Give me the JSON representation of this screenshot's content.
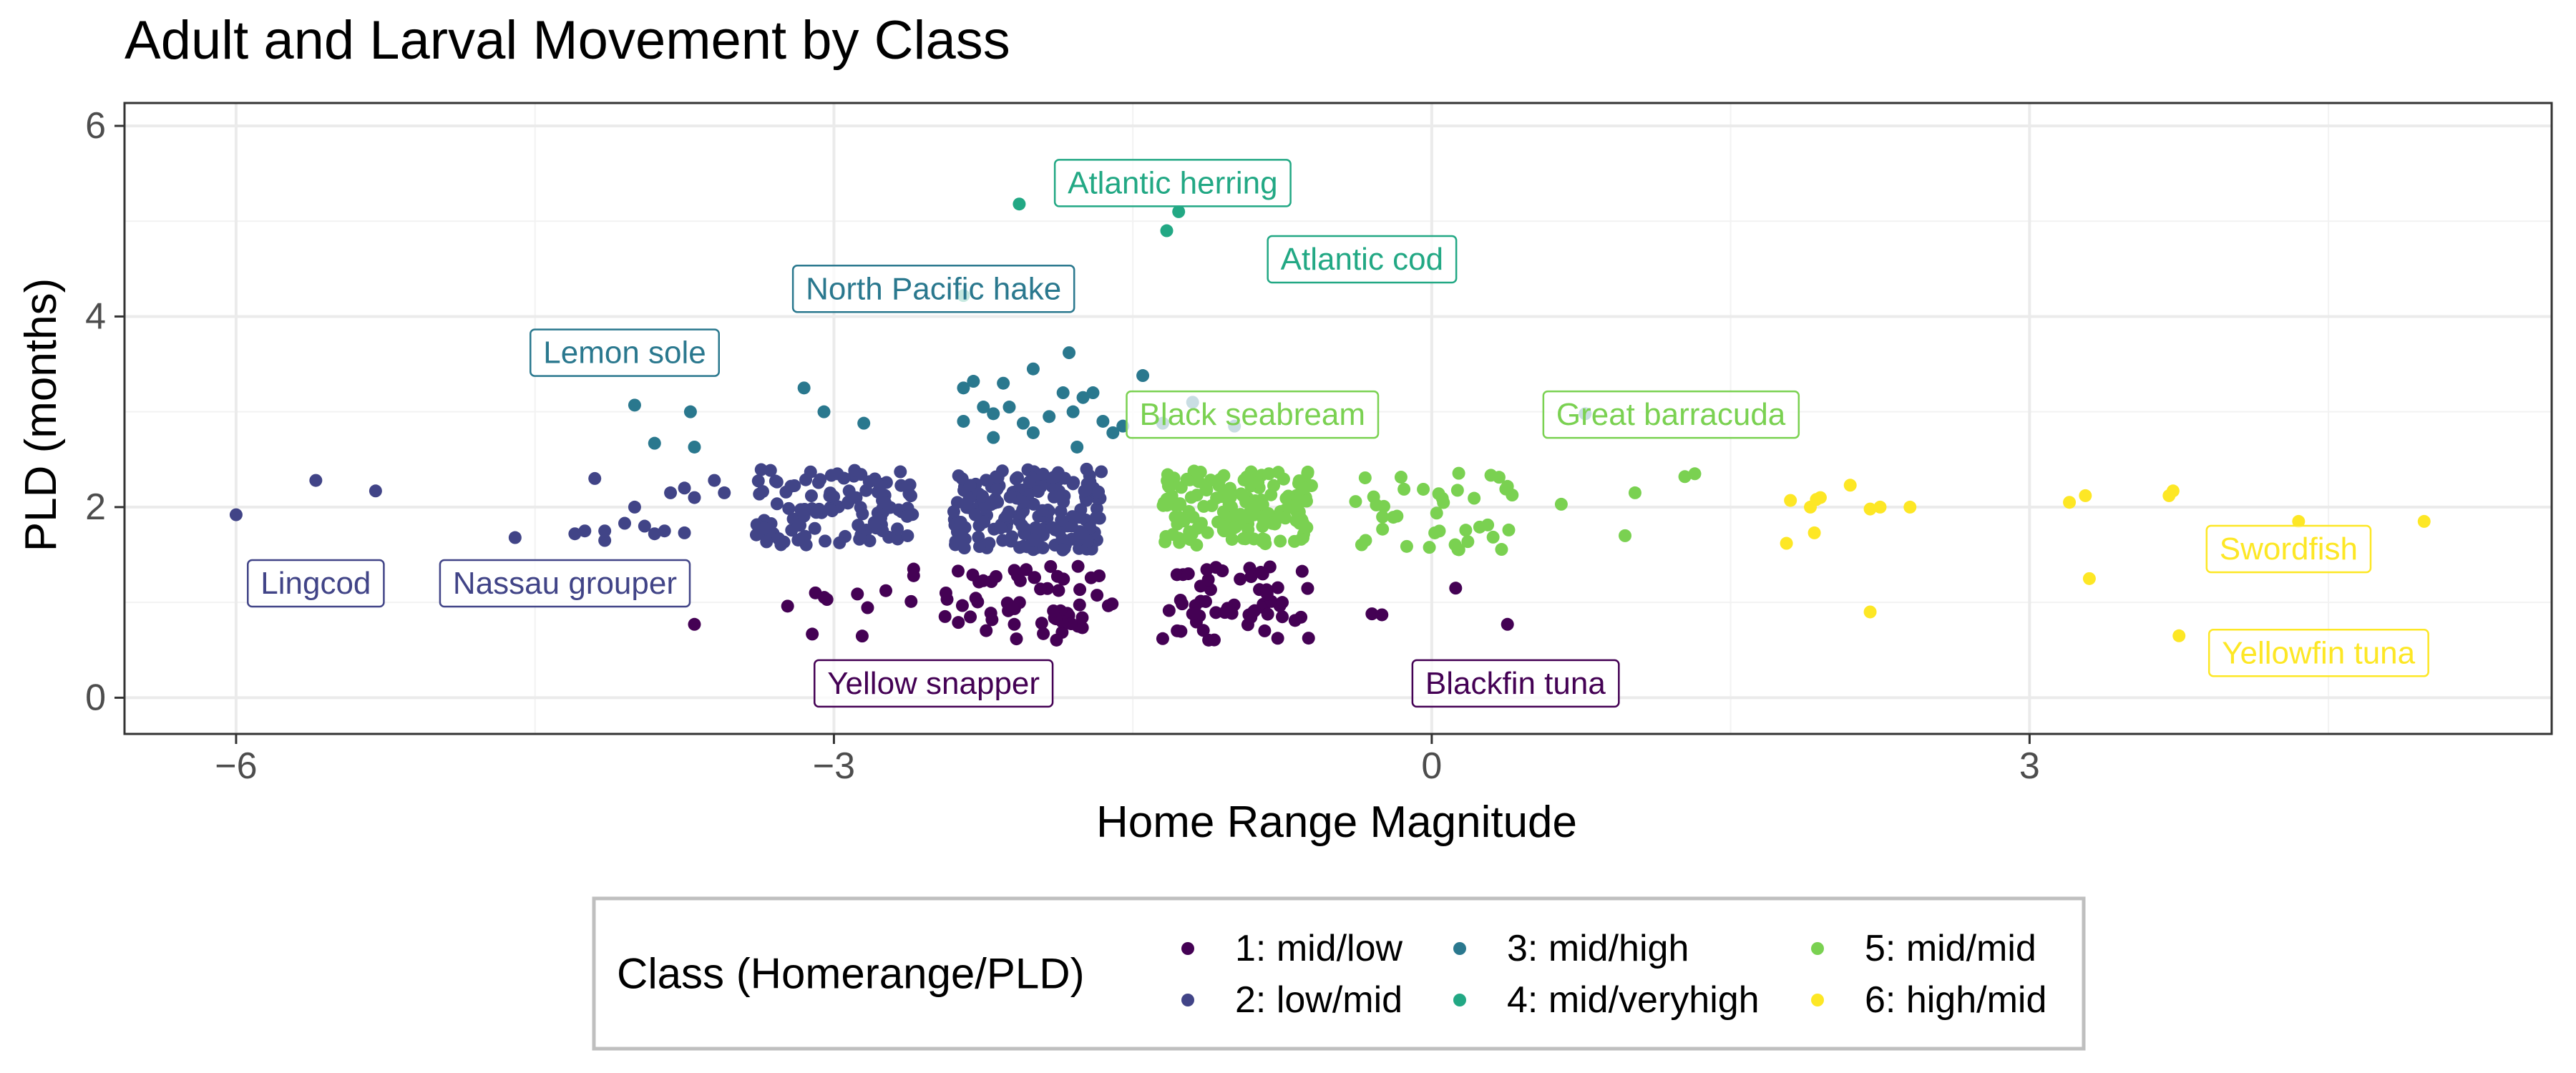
{
  "chart_data": {
    "type": "scatter",
    "title": "Adult and Larval Movement by Class",
    "xlabel": "Home Range Magnitude",
    "ylabel": "PLD (months)",
    "xlim": [
      -6.56,
      5.62
    ],
    "ylim": [
      -0.38,
      6.24
    ],
    "x_ticks": [
      -6,
      -3,
      0,
      3
    ],
    "x_tick_labels": [
      "−6",
      "−3",
      "0",
      "3"
    ],
    "y_ticks": [
      0,
      2,
      4,
      6
    ],
    "y_tick_labels": [
      "0",
      "2",
      "4",
      "6"
    ],
    "grid": true,
    "legend": {
      "title": "Class (Homerange/PLD)",
      "position": "bottom",
      "entries": [
        {
          "label": "1: mid/low",
          "color": "#440154"
        },
        {
          "label": "2: low/mid",
          "color": "#414487"
        },
        {
          "label": "3: mid/high",
          "color": "#2A788E"
        },
        {
          "label": "4: mid/veryhigh",
          "color": "#22A884"
        },
        {
          "label": "5: mid/mid",
          "color": "#7AD151"
        },
        {
          "label": "6: high/mid",
          "color": "#FDE725"
        }
      ]
    },
    "series": [
      {
        "name": "1: mid/low",
        "color": "#440154",
        "clusters": [
          {
            "x": [
              -2.45,
              -1.6
            ],
            "y": [
              0.6,
              1.38
            ],
            "n": 60
          },
          {
            "x": [
              -1.35,
              -0.6
            ],
            "y": [
              0.6,
              1.38
            ],
            "n": 55
          },
          {
            "x": [
              -3.25,
              -2.55
            ],
            "y": [
              0.6,
              1.15
            ],
            "n": 10
          }
        ],
        "points": [
          [
            -3.7,
            0.77
          ],
          [
            -2.6,
            1.35
          ],
          [
            -2.6,
            1.28
          ],
          [
            -0.3,
            0.88
          ],
          [
            -0.25,
            0.87
          ],
          [
            0.12,
            1.15
          ],
          [
            0.38,
            0.77
          ],
          [
            -1.35,
            0.62
          ],
          [
            -1.2,
            0.88
          ],
          [
            -0.75,
            1.0
          ]
        ]
      },
      {
        "name": "2: low/mid",
        "color": "#414487",
        "clusters": [
          {
            "x": [
              -3.4,
              -2.6
            ],
            "y": [
              1.6,
              2.4
            ],
            "n": 105
          },
          {
            "x": [
              -2.4,
              -1.65
            ],
            "y": [
              1.55,
              2.4
            ],
            "n": 190
          }
        ],
        "points": [
          [
            -6.0,
            1.92
          ],
          [
            -5.6,
            2.28
          ],
          [
            -5.3,
            2.17
          ],
          [
            -4.6,
            1.68
          ],
          [
            -4.25,
            1.75
          ],
          [
            -4.15,
            1.65
          ],
          [
            -4.15,
            1.75
          ],
          [
            -4.2,
            2.3
          ],
          [
            -4.05,
            1.83
          ],
          [
            -4.0,
            2.0
          ],
          [
            -3.95,
            1.8
          ],
          [
            -3.85,
            1.75
          ],
          [
            -3.82,
            2.15
          ],
          [
            -3.75,
            2.2
          ],
          [
            -3.7,
            2.1
          ],
          [
            -3.6,
            2.28
          ],
          [
            -3.55,
            2.15
          ],
          [
            -3.75,
            1.73
          ],
          [
            -3.9,
            1.72
          ],
          [
            -4.3,
            1.72
          ]
        ]
      },
      {
        "name": "3: mid/high",
        "color": "#2A788E",
        "points": [
          [
            -4.0,
            3.07
          ],
          [
            -3.9,
            2.67
          ],
          [
            -3.72,
            3.0
          ],
          [
            -3.7,
            2.63
          ],
          [
            -3.15,
            3.25
          ],
          [
            -3.05,
            3.0
          ],
          [
            -2.85,
            2.88
          ],
          [
            -2.35,
            3.25
          ],
          [
            -2.3,
            3.32
          ],
          [
            -2.25,
            3.05
          ],
          [
            -2.2,
            2.98
          ],
          [
            -2.2,
            2.73
          ],
          [
            -2.15,
            3.3
          ],
          [
            -2.12,
            3.05
          ],
          [
            -2.05,
            2.88
          ],
          [
            -2.0,
            3.45
          ],
          [
            -2.0,
            2.78
          ],
          [
            -1.92,
            2.95
          ],
          [
            -1.85,
            3.2
          ],
          [
            -1.8,
            3.0
          ],
          [
            -1.78,
            2.63
          ],
          [
            -1.75,
            3.15
          ],
          [
            -1.7,
            3.2
          ],
          [
            -1.65,
            2.9
          ],
          [
            -1.6,
            2.78
          ],
          [
            -1.55,
            2.85
          ],
          [
            -1.45,
            3.38
          ],
          [
            -1.35,
            2.88
          ],
          [
            -1.2,
            3.1
          ],
          [
            -1.82,
            3.62
          ],
          [
            -2.35,
            2.9
          ],
          [
            -0.99,
            2.85
          ],
          [
            0.77,
            2.98
          ]
        ]
      },
      {
        "name": "4: mid/veryhigh",
        "color": "#22A884",
        "points": [
          [
            -2.35,
            4.22
          ],
          [
            -2.07,
            5.18
          ],
          [
            -1.27,
            5.1
          ],
          [
            -1.33,
            4.9
          ]
        ]
      },
      {
        "name": "5: mid/mid",
        "color": "#7AD151",
        "clusters": [
          {
            "x": [
              -1.35,
              -0.6
            ],
            "y": [
              1.6,
              2.4
            ],
            "n": 155
          },
          {
            "x": [
              -0.4,
              0.45
            ],
            "y": [
              1.55,
              2.38
            ],
            "n": 40
          }
        ],
        "points": [
          [
            0.65,
            2.03
          ],
          [
            0.97,
            1.7
          ],
          [
            1.02,
            2.15
          ],
          [
            1.27,
            2.32
          ],
          [
            1.32,
            2.35
          ]
        ]
      },
      {
        "name": "6: high/mid",
        "color": "#FDE725",
        "points": [
          [
            1.78,
            1.62
          ],
          [
            1.8,
            2.07
          ],
          [
            1.9,
            2.0
          ],
          [
            1.93,
            2.08
          ],
          [
            1.92,
            1.73
          ],
          [
            1.95,
            2.1
          ],
          [
            2.1,
            2.23
          ],
          [
            2.2,
            1.98
          ],
          [
            2.25,
            2.0
          ],
          [
            2.4,
            2.0
          ],
          [
            2.2,
            0.9
          ],
          [
            3.2,
            2.05
          ],
          [
            3.28,
            2.12
          ],
          [
            3.3,
            1.25
          ],
          [
            3.7,
            2.12
          ],
          [
            3.72,
            2.17
          ],
          [
            3.75,
            0.65
          ],
          [
            4.35,
            1.85
          ],
          [
            4.98,
            1.85
          ]
        ]
      }
    ],
    "annotations": [
      {
        "text": "Atlantic herring",
        "x": -1.3,
        "y": 5.4,
        "class": "4: mid/veryhigh",
        "color": "#22A884"
      },
      {
        "text": "Atlantic cod",
        "x": -0.35,
        "y": 4.6,
        "class": "4: mid/veryhigh",
        "color": "#22A884"
      },
      {
        "text": "North Pacific hake",
        "x": -2.5,
        "y": 4.29,
        "class": "3: mid/high",
        "color": "#2A788E"
      },
      {
        "text": "Lemon sole",
        "x": -4.05,
        "y": 3.62,
        "class": "3: mid/high",
        "color": "#2A788E"
      },
      {
        "text": "Black seabream",
        "x": -0.9,
        "y": 2.97,
        "class": "5: mid/mid",
        "color": "#7AD151"
      },
      {
        "text": "Great barracuda",
        "x": 1.2,
        "y": 2.97,
        "class": "5: mid/mid",
        "color": "#7AD151"
      },
      {
        "text": "Lingcod",
        "x": -5.6,
        "y": 1.2,
        "class": "2: low/mid",
        "color": "#414487"
      },
      {
        "text": "Nassau grouper",
        "x": -4.35,
        "y": 1.2,
        "class": "2: low/mid",
        "color": "#414487"
      },
      {
        "text": "Yellow snapper",
        "x": -2.5,
        "y": 0.15,
        "class": "1: mid/low",
        "color": "#440154"
      },
      {
        "text": "Blackfin tuna",
        "x": 0.42,
        "y": 0.15,
        "class": "1: mid/low",
        "color": "#440154"
      },
      {
        "text": "Swordfish",
        "x": 4.3,
        "y": 1.56,
        "class": "6: high/mid",
        "color": "#FDE725"
      },
      {
        "text": "Yellowfin tuna",
        "x": 4.45,
        "y": 0.47,
        "class": "6: high/mid",
        "color": "#FDE725"
      }
    ]
  }
}
